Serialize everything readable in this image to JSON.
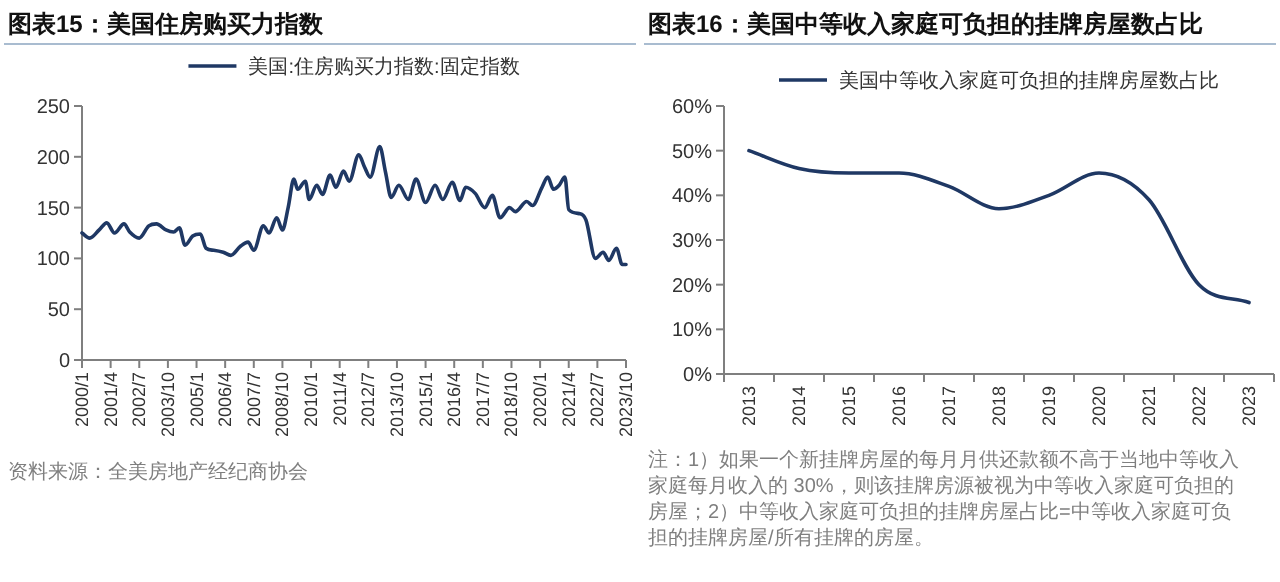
{
  "chart_data": [
    {
      "type": "line",
      "title": "图表15：美国住房购买力指数",
      "legend": "top",
      "marker": "none",
      "line_style": "solid",
      "x": [
        "2000-01",
        "2000-05",
        "2000-10",
        "2001-02",
        "2001-06",
        "2001-11",
        "2002-02",
        "2002-07",
        "2002-12",
        "2003-04",
        "2003-09",
        "2004-01",
        "2004-04",
        "2004-07",
        "2004-11",
        "2005-03",
        "2005-06",
        "2005-10",
        "2006-03",
        "2006-07",
        "2006-12",
        "2007-04",
        "2007-07",
        "2007-12",
        "2008-03",
        "2008-07",
        "2008-10",
        "2009-01",
        "2009-04",
        "2009-06",
        "2009-10",
        "2009-12",
        "2010-04",
        "2010-07",
        "2010-11",
        "2011-02",
        "2011-06",
        "2011-09",
        "2012-02",
        "2012-05",
        "2012-08",
        "2013-01",
        "2013-04",
        "2013-07",
        "2013-11",
        "2014-04",
        "2014-08",
        "2015-01",
        "2015-06",
        "2015-10",
        "2016-03",
        "2016-07",
        "2016-10",
        "2017-03",
        "2017-08",
        "2017-12",
        "2018-04",
        "2018-09",
        "2018-12",
        "2019-06",
        "2019-09",
        "2020-02",
        "2020-05",
        "2020-08",
        "2020-11",
        "2021-02",
        "2021-04",
        "2021-10",
        "2022-01",
        "2022-06",
        "2022-10",
        "2023-01",
        "2023-05",
        "2023-08",
        "2023-10"
      ],
      "series": [
        {
          "name": "美国:住房购买力指数:固定指数",
          "color": "#1f3864",
          "values": [
            125,
            120,
            128,
            135,
            125,
            134,
            126,
            120,
            132,
            134,
            128,
            126,
            130,
            113,
            122,
            124,
            110,
            108,
            106,
            103,
            112,
            116,
            108,
            132,
            125,
            140,
            128,
            150,
            178,
            168,
            176,
            158,
            172,
            163,
            182,
            170,
            186,
            176,
            202,
            190,
            180,
            210,
            185,
            160,
            172,
            158,
            178,
            155,
            172,
            158,
            175,
            157,
            170,
            164,
            150,
            162,
            140,
            150,
            146,
            156,
            152,
            170,
            180,
            168,
            172,
            180,
            148,
            144,
            138,
            100,
            106,
            98,
            110,
            94,
            94
          ]
        }
      ],
      "xlim": [
        "2000-01",
        "2023-10"
      ],
      "xticks": [
        {
          "value": "2000-01",
          "label": "2000/1"
        },
        {
          "value": "2001-04",
          "label": "2001/4"
        },
        {
          "value": "2002-07",
          "label": "2002/7"
        },
        {
          "value": "2003-10",
          "label": "2003/10"
        },
        {
          "value": "2005-01",
          "label": "2005/1"
        },
        {
          "value": "2006-04",
          "label": "2006/4"
        },
        {
          "value": "2007-07",
          "label": "2007/7"
        },
        {
          "value": "2008-10",
          "label": "2008/10"
        },
        {
          "value": "2010-01",
          "label": "2010/1"
        },
        {
          "value": "2011-04",
          "label": "2011/4"
        },
        {
          "value": "2012-07",
          "label": "2012/7"
        },
        {
          "value": "2013-10",
          "label": "2013/10"
        },
        {
          "value": "2015-01",
          "label": "2015/1"
        },
        {
          "value": "2016-04",
          "label": "2016/4"
        },
        {
          "value": "2017-07",
          "label": "2017/7"
        },
        {
          "value": "2018-10",
          "label": "2018/10"
        },
        {
          "value": "2020-01",
          "label": "2020/1"
        },
        {
          "value": "2021-04",
          "label": "2021/4"
        },
        {
          "value": "2022-07",
          "label": "2022/7"
        },
        {
          "value": "2023-10",
          "label": "2023/10"
        }
      ],
      "ylim": [
        0,
        250
      ],
      "yticks": [
        0,
        50,
        100,
        150,
        200,
        250
      ],
      "annotations": [
        "资料来源：全美房地产经纪商协会"
      ]
    },
    {
      "type": "line",
      "title": "图表16：美国中等收入家庭可负担的挂牌房屋数占比",
      "legend": "top",
      "marker": "none",
      "line_style": "solid",
      "categories": [
        "2013",
        "2014",
        "2015",
        "2016",
        "2017",
        "2018",
        "2019",
        "2020",
        "2021",
        "2022",
        "2023"
      ],
      "series": [
        {
          "name": "美国中等收入家庭可负担的挂牌房屋数占比",
          "color": "#1f3864",
          "values": [
            50,
            46,
            45,
            45,
            42,
            37,
            40,
            45,
            39,
            20,
            16
          ]
        }
      ],
      "ylim": [
        0,
        60
      ],
      "yticks": [
        {
          "value": 0,
          "label": "0%"
        },
        {
          "value": 10,
          "label": "10%"
        },
        {
          "value": 20,
          "label": "20%"
        },
        {
          "value": 30,
          "label": "30%"
        },
        {
          "value": 40,
          "label": "40%"
        },
        {
          "value": 50,
          "label": "50%"
        },
        {
          "value": 60,
          "label": "60%"
        }
      ],
      "annotations": [
        "注：1）如果一个新挂牌房屋的每月月供还款额不高于当地中等收入家庭每月收入的 30%，则该挂牌房源被视为中等收入家庭可负担的房屋；2）中等收入家庭可负担的挂牌房屋占比=中等收入家庭可负担的挂牌房屋/所有挂牌的房屋。"
      ]
    }
  ]
}
